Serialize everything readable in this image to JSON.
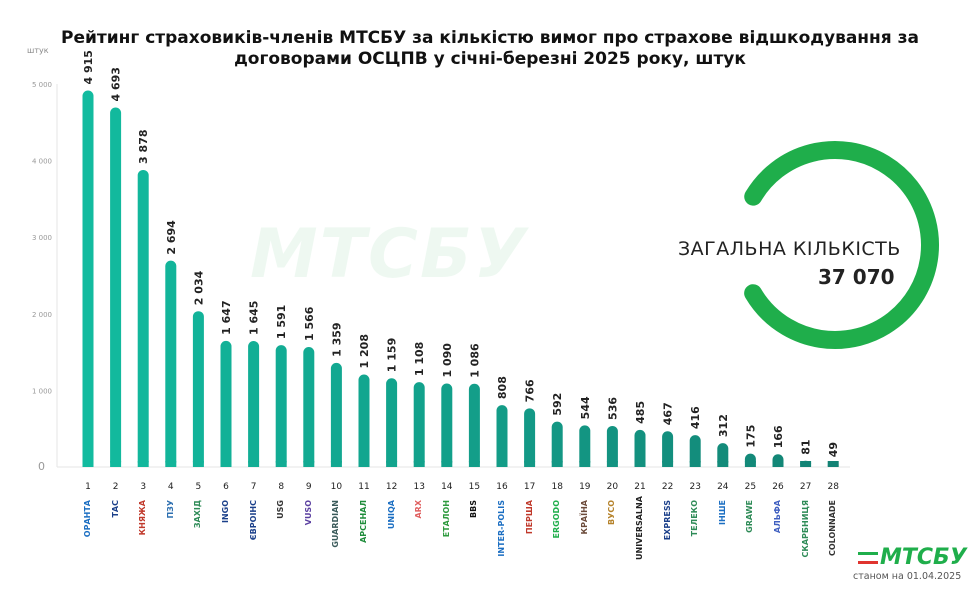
{
  "chart_data": {
    "type": "bar",
    "title": "Рейтинг страховиків-членів МТСБУ за кількістю вимог про страхове відшкодування за договорами ОСЦПВ у січні-березні 2025 року, штук",
    "ylabel": "штук",
    "ylim": [
      0,
      5000
    ],
    "yticks": [
      "0",
      "1 000",
      "2 000",
      "3 000",
      "4 000",
      "5 000"
    ],
    "categories": [
      "1",
      "2",
      "3",
      "4",
      "5",
      "6",
      "7",
      "8",
      "9",
      "10",
      "11",
      "12",
      "13",
      "14",
      "15",
      "16",
      "17",
      "18",
      "19",
      "20",
      "21",
      "22",
      "23",
      "24",
      "25",
      "26",
      "27",
      "28"
    ],
    "values": [
      4915,
      4693,
      3878,
      2694,
      2034,
      1647,
      1645,
      1591,
      1566,
      1359,
      1208,
      1159,
      1108,
      1090,
      1086,
      808,
      766,
      592,
      544,
      536,
      485,
      467,
      416,
      312,
      175,
      166,
      81,
      49
    ],
    "value_labels": [
      "4 915",
      "4 693",
      "3 878",
      "2 694",
      "2 034",
      "1 647",
      "1 645",
      "1 591",
      "1 566",
      "1 359",
      "1 208",
      "1 159",
      "1 108",
      "1 090",
      "1 086",
      "808",
      "766",
      "592",
      "544",
      "536",
      "485",
      "467",
      "416",
      "312",
      "175",
      "166",
      "81",
      "49"
    ],
    "logos": [
      "ОРАНТА",
      "ТАС",
      "КНЯЖА",
      "ПЗУ",
      "ЗАХІД",
      "INGO",
      "ЄВРОІНС",
      "USG",
      "VUSO",
      "GUARDIAN",
      "АРСЕНАЛ",
      "UNIQA",
      "ARX",
      "ЕТАЛОН",
      "BBS",
      "INTER-POLIS",
      "ПЕРША",
      "ERGODO",
      "КРАЇНА",
      "ВУСО",
      "UNIVERSALNA",
      "EXPRESS",
      "ТЕЛЕКО",
      "ІНШЕ",
      "GRAWE",
      "АЛЬФА",
      "СКАРБНИЦЯ",
      "COLONNADE"
    ],
    "grid": false
  },
  "summary": {
    "label": "ЗАГАЛЬНА КІЛЬКІСТЬ",
    "value": "37 070"
  },
  "watermark": "МТСБУ",
  "footer": {
    "logo": "МТСБУ",
    "date": "станом на 01.04.2025"
  },
  "colors": {
    "bar_top": "#12bb9f",
    "bar_bottom": "#138c7c",
    "ring": "#1fae4b",
    "red": "#e0342f"
  }
}
